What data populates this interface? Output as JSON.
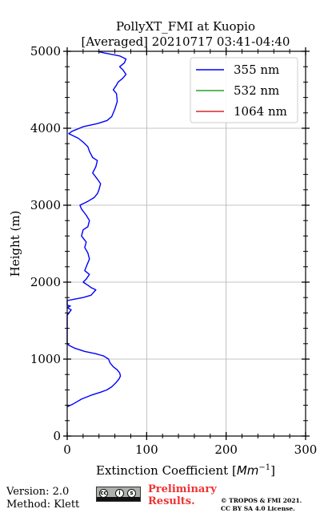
{
  "chart_data": {
    "type": "line",
    "title": "PollyXT_FMI at Kuopio",
    "subtitle": "[Averaged] 20210717 03:41-04:40",
    "xlabel_prefix": "Extinction Coefficient [",
    "xlabel_unit_base": "Mm",
    "xlabel_unit_exp": "−1",
    "xlabel_suffix": "]",
    "ylabel": "Height (m)",
    "xlim": [
      0,
      300
    ],
    "ylim": [
      0,
      5000
    ],
    "x_ticks": [
      0,
      100,
      200,
      300
    ],
    "x_tick_labels": [
      "0",
      "100",
      "200",
      "300"
    ],
    "y_ticks": [
      0,
      1000,
      2000,
      3000,
      4000,
      5000
    ],
    "y_tick_labels": [
      "0",
      "1000",
      "2000",
      "3000",
      "4000",
      "5000"
    ],
    "y_minor_step": 200,
    "x_minor_step": 20,
    "grid": true,
    "legend_position": "top-right",
    "series": [
      {
        "name": "355 nm",
        "color": "#0000ff",
        "points": [
          [
            0,
            380
          ],
          [
            8,
            420
          ],
          [
            18,
            480
          ],
          [
            30,
            530
          ],
          [
            42,
            570
          ],
          [
            50,
            600
          ],
          [
            56,
            640
          ],
          [
            61,
            690
          ],
          [
            65,
            740
          ],
          [
            67,
            780
          ],
          [
            66,
            820
          ],
          [
            63,
            860
          ],
          [
            58,
            900
          ],
          [
            54,
            950
          ],
          [
            52,
            1000
          ],
          [
            46,
            1040
          ],
          [
            36,
            1070
          ],
          [
            22,
            1100
          ],
          [
            10,
            1140
          ],
          [
            2,
            1180
          ],
          [
            0,
            1210
          ],
          [
            0,
            1570
          ],
          [
            5,
            1640
          ],
          [
            0,
            1670
          ],
          [
            4,
            1690
          ],
          [
            0,
            1700
          ],
          [
            0,
            1760
          ],
          [
            10,
            1780
          ],
          [
            20,
            1800
          ],
          [
            30,
            1830
          ],
          [
            36,
            1900
          ],
          [
            30,
            1930
          ],
          [
            26,
            1960
          ],
          [
            20,
            2000
          ],
          [
            24,
            2040
          ],
          [
            28,
            2100
          ],
          [
            22,
            2150
          ],
          [
            24,
            2200
          ],
          [
            28,
            2300
          ],
          [
            26,
            2380
          ],
          [
            22,
            2450
          ],
          [
            24,
            2520
          ],
          [
            18,
            2600
          ],
          [
            20,
            2680
          ],
          [
            26,
            2720
          ],
          [
            28,
            2800
          ],
          [
            24,
            2870
          ],
          [
            18,
            2950
          ],
          [
            16,
            3000
          ],
          [
            26,
            3050
          ],
          [
            34,
            3100
          ],
          [
            38,
            3150
          ],
          [
            40,
            3200
          ],
          [
            42,
            3280
          ],
          [
            38,
            3340
          ],
          [
            32,
            3420
          ],
          [
            36,
            3500
          ],
          [
            38,
            3580
          ],
          [
            32,
            3620
          ],
          [
            28,
            3700
          ],
          [
            26,
            3760
          ],
          [
            20,
            3820
          ],
          [
            14,
            3870
          ],
          [
            8,
            3900
          ],
          [
            2,
            3930
          ],
          [
            6,
            3960
          ],
          [
            20,
            4020
          ],
          [
            38,
            4060
          ],
          [
            50,
            4100
          ],
          [
            56,
            4150
          ],
          [
            60,
            4250
          ],
          [
            63,
            4350
          ],
          [
            62,
            4450
          ],
          [
            58,
            4500
          ],
          [
            62,
            4560
          ],
          [
            64,
            4600
          ],
          [
            70,
            4650
          ],
          [
            74,
            4700
          ],
          [
            70,
            4760
          ],
          [
            66,
            4800
          ],
          [
            72,
            4850
          ],
          [
            74,
            4900
          ],
          [
            66,
            4940
          ],
          [
            56,
            4960
          ],
          [
            46,
            4980
          ],
          [
            38,
            5000
          ]
        ]
      },
      {
        "name": "532 nm",
        "color": "#2ca02c",
        "points": []
      },
      {
        "name": "1064 nm",
        "color": "#d62728",
        "points": []
      }
    ]
  },
  "footer": {
    "version_line": "Version: 2.0",
    "method_line": "Method: Klett",
    "cc_icons": [
      "cc",
      "i",
      "s"
    ],
    "cc_small": "BY  SA",
    "preliminary_line1": "Preliminary",
    "preliminary_line2": "Results.",
    "copyright_line1": "© TROPOS & FMI 2021.",
    "copyright_line2": "CC BY SA 4.0 License.",
    "preliminary_color": "#ee3333"
  }
}
